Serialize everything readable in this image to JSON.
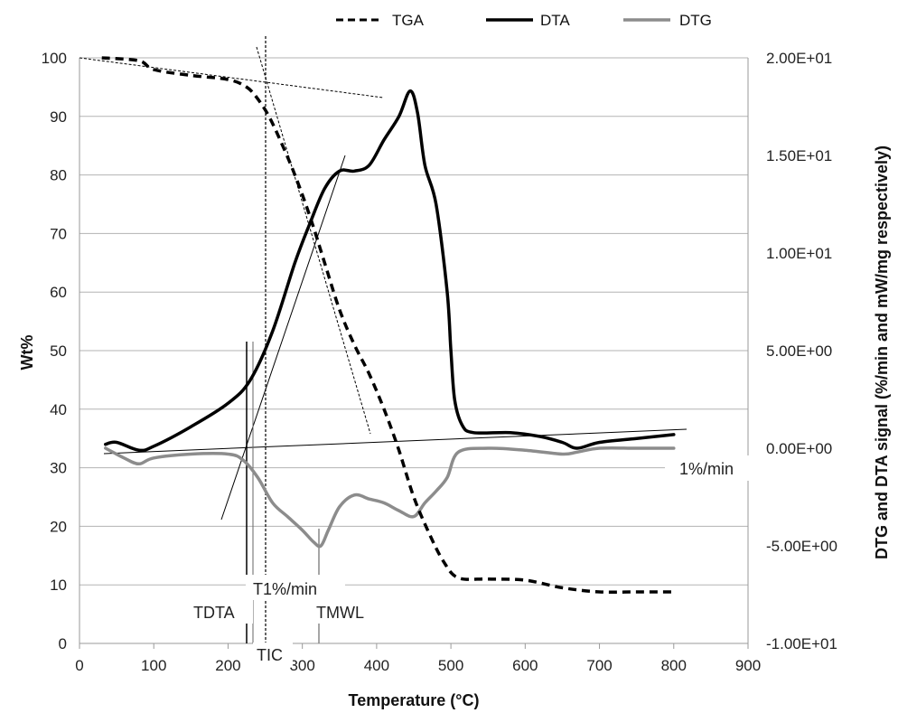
{
  "chart_data": {
    "type": "line",
    "xlabel": "Temperature (°C)",
    "ylabel_left": "Wt%",
    "ylabel_right": "DTG and DTA signal (%/min and mW/mg respectively)",
    "xlim": [
      0,
      900
    ],
    "ylim_left": [
      0,
      100
    ],
    "ylim_right": [
      -10,
      20
    ],
    "x_ticks": [
      "0",
      "100",
      "200",
      "300",
      "400",
      "500",
      "600",
      "700",
      "800",
      "900"
    ],
    "y_ticks_left": [
      "0",
      "10",
      "20",
      "30",
      "40",
      "50",
      "60",
      "70",
      "80",
      "90",
      "100"
    ],
    "y_ticks_right": [
      "-1.00E+01",
      "-5.00E+00",
      "0.00E+00",
      "5.00E+00",
      "1.00E+01",
      "1.50E+01",
      "2.00E+01"
    ],
    "grid": "horizontal",
    "legend_position": "top",
    "series": [
      {
        "name": "TGA",
        "axis": "left",
        "style": "dashed",
        "color": "#000000",
        "x": [
          30,
          80,
          100,
          150,
          200,
          225,
          240,
          255,
          270,
          290,
          310,
          330,
          350,
          370,
          390,
          410,
          430,
          450,
          470,
          490,
          510,
          550,
          600,
          650,
          700,
          750,
          800
        ],
        "y": [
          100,
          99.5,
          98,
          97,
          96.3,
          95,
          93,
          90,
          86,
          80,
          73,
          65,
          57,
          51,
          46,
          40,
          33,
          25,
          19,
          14,
          11.2,
          11,
          10.8,
          9.5,
          8.8,
          8.8,
          8.8
        ]
      },
      {
        "name": "DTA",
        "axis": "right",
        "style": "solid",
        "color": "#000000",
        "x": [
          35,
          50,
          80,
          100,
          150,
          200,
          230,
          260,
          290,
          310,
          330,
          350,
          370,
          390,
          410,
          430,
          445,
          455,
          465,
          480,
          495,
          500,
          505,
          515,
          530,
          580,
          620,
          650,
          670,
          700,
          750,
          800
        ],
        "y": [
          0.2,
          0.3,
          -0.1,
          0.1,
          1.1,
          2.3,
          3.5,
          6.0,
          9.5,
          11.5,
          13.3,
          14.2,
          14.2,
          14.5,
          15.8,
          17.0,
          18.3,
          17.2,
          14.5,
          12.5,
          8.0,
          5.0,
          2.5,
          1.2,
          0.8,
          0.8,
          0.6,
          0.3,
          0.0,
          0.3,
          0.5,
          0.7
        ]
      },
      {
        "name": "DTG",
        "axis": "right",
        "style": "solid",
        "color": "#8c8c8c",
        "x": [
          35,
          60,
          80,
          100,
          150,
          200,
          220,
          240,
          260,
          280,
          300,
          315,
          325,
          335,
          350,
          370,
          390,
          410,
          430,
          450,
          465,
          480,
          495,
          510,
          550,
          600,
          650,
          670,
          700,
          750,
          800
        ],
        "y": [
          0,
          -0.5,
          -0.8,
          -0.5,
          -0.3,
          -0.3,
          -0.6,
          -1.5,
          -2.8,
          -3.5,
          -4.2,
          -4.8,
          -5.0,
          -4.2,
          -3.0,
          -2.4,
          -2.6,
          -2.8,
          -3.2,
          -3.5,
          -2.8,
          -2.2,
          -1.5,
          -0.2,
          0,
          -0.1,
          -0.3,
          -0.2,
          0,
          0,
          0
        ]
      }
    ],
    "annotations": [
      {
        "text": "TDTA",
        "x": 225
      },
      {
        "text": "TIC",
        "x": 232
      },
      {
        "text": "T1%/min",
        "x": 232
      },
      {
        "text": "TMWL",
        "x": 322
      },
      {
        "text": "1%/min"
      }
    ]
  }
}
